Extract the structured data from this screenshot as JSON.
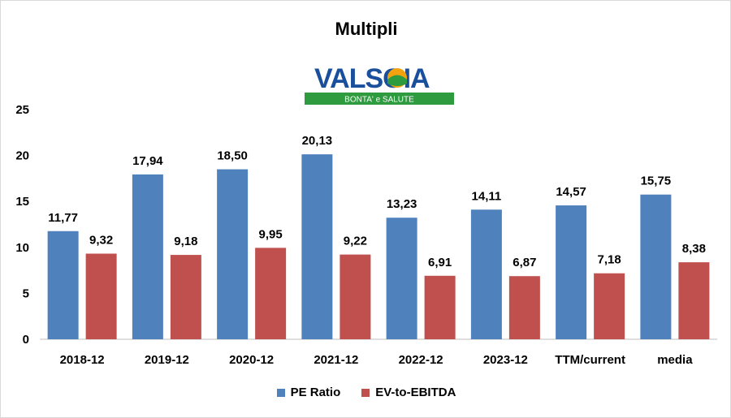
{
  "chart_data": {
    "type": "bar",
    "title": "Multipli",
    "categories": [
      "2018-12",
      "2019-12",
      "2020-12",
      "2021-12",
      "2022-12",
      "2023-12",
      "TTM/current",
      "media"
    ],
    "series": [
      {
        "name": "PE Ratio",
        "color": "#4F81BD",
        "values": [
          11.77,
          17.94,
          18.5,
          20.13,
          13.23,
          14.11,
          14.57,
          15.75
        ],
        "labels": [
          "11,77",
          "17,94",
          "18,50",
          "20,13",
          "13,23",
          "14,11",
          "14,57",
          "15,75"
        ]
      },
      {
        "name": "EV-to-EBITDA",
        "color": "#C0504D",
        "values": [
          9.32,
          9.18,
          9.95,
          9.22,
          6.91,
          6.87,
          7.18,
          8.38
        ],
        "labels": [
          "9,32",
          "9,18",
          "9,95",
          "9,22",
          "6,91",
          "6,87",
          "7,18",
          "8,38"
        ]
      }
    ],
    "ylim": [
      0,
      25
    ],
    "yticks": [
      0,
      5,
      10,
      15,
      20,
      25
    ],
    "grid": false,
    "legend_position": "bottom"
  },
  "logo": {
    "text": "VALSOIA",
    "tagline": "BONTA' e SALUTE",
    "text_color": "#1a4f9c",
    "band_color": "#2e9b3e"
  }
}
